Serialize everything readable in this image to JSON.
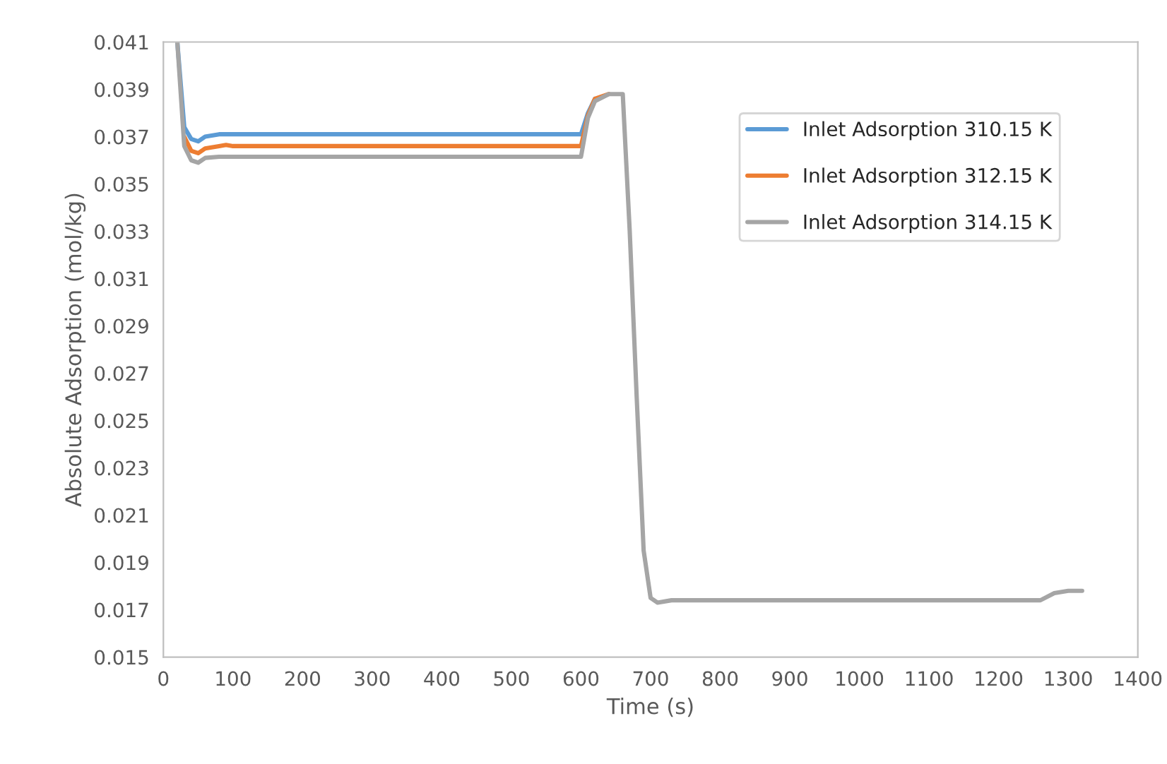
{
  "chart_data": {
    "type": "line",
    "xlabel": "Time (s)",
    "ylabel": "Absolute Adsorption (mol/kg)",
    "xlim": [
      0,
      1400
    ],
    "xticks": [
      0,
      100,
      200,
      300,
      400,
      500,
      600,
      700,
      800,
      900,
      1000,
      1100,
      1200,
      1300,
      1400
    ],
    "ylim": [
      0.015,
      0.041
    ],
    "yticks": [
      0.015,
      0.017,
      0.019,
      0.021,
      0.023,
      0.025,
      0.027,
      0.029,
      0.031,
      0.033,
      0.035,
      0.037,
      0.039,
      0.041
    ],
    "grid": false,
    "legend": "top right",
    "marker": "none",
    "line_style": "solid",
    "series": [
      {
        "name": "Inlet Adsorption 310.15 K",
        "color": "#5b9bd5",
        "x": [
          20,
          30,
          40,
          50,
          60,
          80,
          100,
          600,
          610,
          620
        ],
        "values": [
          0.041,
          0.0374,
          0.0369,
          0.0368,
          0.037,
          0.0371,
          0.0371,
          0.0371,
          0.038,
          0.0386
        ]
      },
      {
        "name": "Inlet Adsorption 312.15 K",
        "color": "#ed7d31",
        "x": [
          30,
          40,
          50,
          60,
          80,
          90,
          100,
          600,
          610,
          620,
          640
        ],
        "values": [
          0.037,
          0.0364,
          0.0363,
          0.0365,
          0.0366,
          0.03665,
          0.0366,
          0.0366,
          0.0379,
          0.0386,
          0.0388
        ]
      },
      {
        "name": "Inlet Adsorption 314.15 K",
        "color": "#a5a5a5",
        "x": [
          20,
          30,
          40,
          50,
          60,
          80,
          100,
          600,
          610,
          620,
          640,
          660,
          670,
          680,
          690,
          700,
          710,
          730,
          1260,
          1280,
          1300,
          1320
        ],
        "values": [
          0.041,
          0.0366,
          0.036,
          0.0359,
          0.0361,
          0.03615,
          0.03615,
          0.03615,
          0.0378,
          0.0385,
          0.0388,
          0.0388,
          0.033,
          0.026,
          0.0195,
          0.0175,
          0.0173,
          0.0174,
          0.0174,
          0.0177,
          0.0178,
          0.0178
        ]
      }
    ]
  }
}
